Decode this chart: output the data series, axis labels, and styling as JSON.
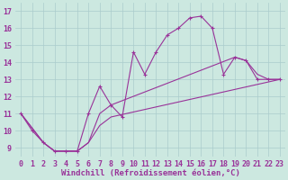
{
  "bg_color": "#cce8e0",
  "line_color": "#993399",
  "xlabel": "Windchill (Refroidissement éolien,°C)",
  "xlim": [
    -0.5,
    23.5
  ],
  "ylim": [
    8.5,
    17.5
  ],
  "yticks": [
    9,
    10,
    11,
    12,
    13,
    14,
    15,
    16,
    17
  ],
  "xticks": [
    0,
    1,
    2,
    3,
    4,
    5,
    6,
    7,
    8,
    9,
    10,
    11,
    12,
    13,
    14,
    15,
    16,
    17,
    18,
    19,
    20,
    21,
    22,
    23
  ],
  "line1_x": [
    0,
    1,
    2,
    3,
    4,
    5,
    6,
    7,
    8,
    9,
    10,
    11,
    12,
    13,
    14,
    15,
    16,
    17,
    18,
    19,
    20,
    21,
    22,
    23
  ],
  "line1_y": [
    11.0,
    10.0,
    9.3,
    8.8,
    8.8,
    8.8,
    11.0,
    12.6,
    11.5,
    10.8,
    14.6,
    13.3,
    14.6,
    15.6,
    16.0,
    16.6,
    16.7,
    16.0,
    13.3,
    14.3,
    14.1,
    13.0,
    13.0,
    13.0
  ],
  "line2_x": [
    0,
    2,
    3,
    4,
    5,
    6,
    7,
    8,
    23
  ],
  "line2_y": [
    11.0,
    9.3,
    8.8,
    8.8,
    8.8,
    9.3,
    10.3,
    10.8,
    13.0
  ],
  "line3_x": [
    0,
    2,
    3,
    4,
    5,
    6,
    7,
    8,
    19,
    20,
    21,
    22,
    23
  ],
  "line3_y": [
    11.0,
    9.3,
    8.8,
    8.8,
    8.8,
    9.3,
    11.0,
    11.5,
    14.3,
    14.1,
    13.3,
    13.0,
    13.0
  ],
  "grid_color": "#aacccc",
  "xlabel_fontsize": 6.5,
  "tick_fontsize": 6.0
}
